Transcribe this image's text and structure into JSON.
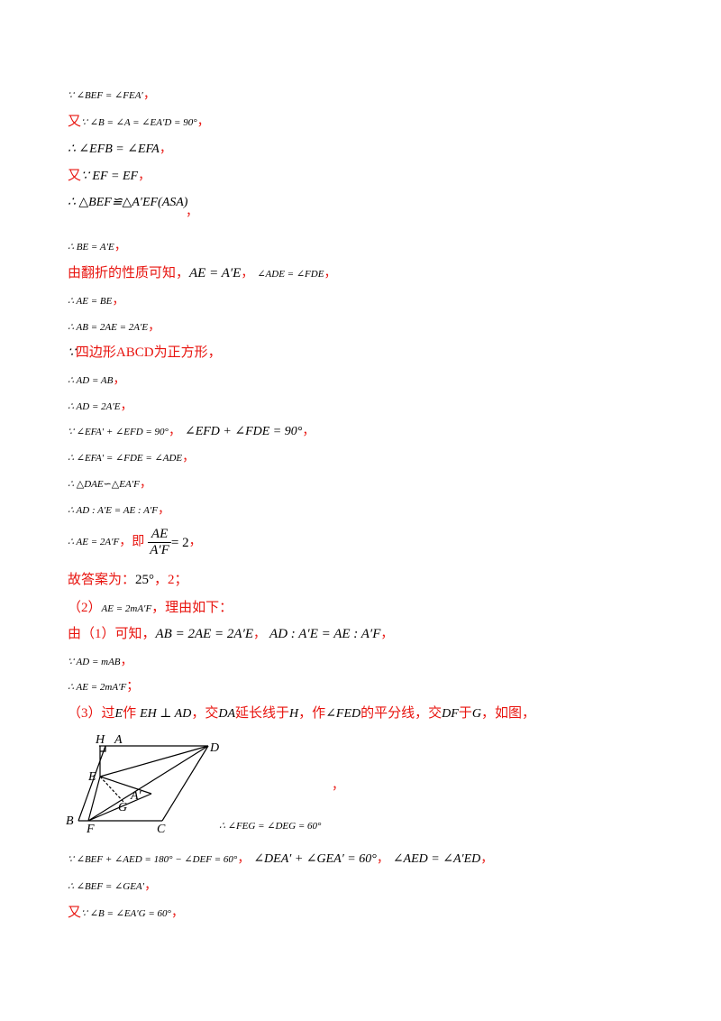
{
  "lines": [
    {
      "pre": "",
      "math": "∵ ∠BEF = ∠FEA′",
      "post": "，"
    },
    {
      "pre": "又",
      "math": "∵ ∠B = ∠A = ∠EA′D = 90°",
      "post": "，"
    },
    {
      "pre": "",
      "math": "∴ ∠EFB = ∠EFA",
      "post": "，"
    },
    {
      "pre": "又",
      "math": "∵ EF = EF",
      "post": "，"
    },
    {
      "pre": "",
      "math": "∴ △BEF≌△A′EF(ASA)",
      "post": "，"
    },
    {
      "pre": "",
      "math": "∴ BE = A′E",
      "post": "，"
    },
    {
      "pre": "由翻折的性质可知，",
      "math": "AE = A′E",
      "post": "，"
    },
    {
      "pre": "",
      "math": "∴ AE = BE",
      "post": "，"
    },
    {
      "pre": "",
      "math": "∴ AB = 2AE = 2A′E",
      "post": "，"
    },
    {
      "pre": "",
      "math": "∵",
      "post": "四边形ABCD为正方形，"
    },
    {
      "pre": "",
      "math": "∴ AD = AB",
      "post": "，"
    },
    {
      "pre": "",
      "math": "∴ AD = 2A′E",
      "post": "，"
    },
    {
      "pre": "",
      "math": "∵ ∠EFA′ + ∠EFD = 90°",
      "post": "，"
    },
    {
      "pre": "",
      "math": "∴ ∠EFA′ = ∠FDE = ∠ADE",
      "post": "，"
    },
    {
      "pre": "",
      "math": "∴ △DAE∽△EA′F",
      "post": "，"
    },
    {
      "pre": "",
      "math": "∴ AD : A′E = AE : A′F",
      "post": "，"
    },
    {
      "pre": "",
      "math": "∴ AE = 2A′F",
      "post": "，即"
    },
    {
      "pre": "故答案为：",
      "math": "25°",
      "post": "，2；"
    },
    {
      "pre": "（2）",
      "math": "AE = 2mA′F",
      "post": "，理由如下："
    },
    {
      "pre": "由（1）可知，",
      "math": "AB = 2AE = 2A′E",
      "post": "，"
    },
    {
      "pre": "",
      "math": "∵ AD = mAB",
      "post": "，"
    },
    {
      "pre": "",
      "math": "∴ AE = 2mA′F",
      "post": "；"
    },
    {
      "pre": "（3）过",
      "math": "E",
      "post": "作"
    },
    {
      "pre": "",
      "math": "∵ ∠BEF + ∠AED = 180° − ∠DEF = 60°",
      "post": "，"
    },
    {
      "pre": "",
      "math": "∴ ∠BEF = ∠GEA′",
      "post": "，"
    },
    {
      "pre": "又",
      "math": "∵ ∠B = ∠EA′G = 60°",
      "post": "，"
    }
  ],
  "extras": {
    "line7_angle": "∠ADE = ∠FDE",
    "line7_end": "，",
    "line13_extra": "∠EFD + ∠FDE = 90°",
    "line13_end": "，",
    "frac_num": "AE",
    "frac_den": "A′F",
    "frac_eq": "= 2",
    "frac_end": "，",
    "line20_extra": "AD : A′E = AE : A′F",
    "line20_end": "，",
    "line23_mid1": "EH ⊥ AD",
    "line23_text1": "，交",
    "line23_mid2": "DA",
    "line23_text2": "延长线于",
    "line23_mid3": "H",
    "line23_text3": "，作",
    "line23_mid4": "∠FED",
    "line23_text4": "的平分线，交",
    "line23_mid5": "DF",
    "line23_text5": "于",
    "line23_mid6": "G",
    "line23_text6": "，如图，",
    "figure_comma": "，",
    "figure_caption": "∴ ∠FEG = ∠DEG = 60°",
    "line24_extra1": "∠DEA′ + ∠GEA′ = 60°",
    "line24_sep": "，",
    "line24_extra2": "∠AED = ∠A′ED",
    "line24_end": "，"
  },
  "figure": {
    "labels": {
      "H": "H",
      "A": "A",
      "D": "D",
      "E": "E",
      "A_prime": "A′",
      "G": "G",
      "B": "B",
      "F": "F",
      "C": "C"
    }
  }
}
